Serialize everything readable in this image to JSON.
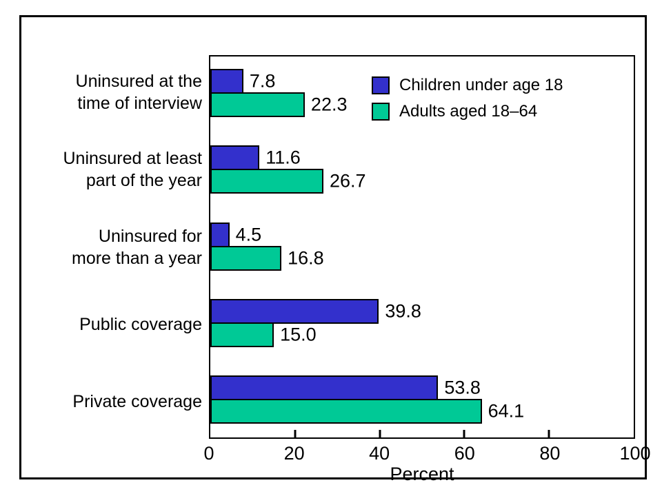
{
  "figure": {
    "background_color": "#FFFFFF",
    "frame_color": "#000000"
  },
  "chart_data": {
    "type": "bar",
    "orientation": "horizontal",
    "title": "",
    "xlabel": "Percent",
    "xlim": [
      0,
      100
    ],
    "xticks": [
      0,
      20,
      40,
      60,
      80,
      100
    ],
    "grid": false,
    "legend_position": "top-right-inside",
    "categories": [
      "Uninsured at the time of interview",
      "Uninsured at least part of the year",
      "Uninsured for more than a year",
      "Public coverage",
      "Private coverage"
    ],
    "category_display_lines": [
      [
        "Uninsured at the",
        "time of interview"
      ],
      [
        "Uninsured at least",
        "part of the year"
      ],
      [
        "Uninsured for",
        "more than a year"
      ],
      [
        "Public coverage"
      ],
      [
        "Private coverage"
      ]
    ],
    "series": [
      {
        "name": "Children under age 18",
        "color": "#3330CC",
        "values": [
          7.8,
          11.6,
          4.5,
          39.8,
          53.8
        ],
        "value_labels": [
          "7.8",
          "11.6",
          "4.5",
          "39.8",
          "53.8"
        ]
      },
      {
        "name": "Adults aged 18–64",
        "color": "#00C996",
        "values": [
          22.3,
          26.7,
          16.8,
          15.0,
          64.1
        ],
        "value_labels": [
          "22.3",
          "26.7",
          "16.8",
          "15.0",
          "64.1"
        ]
      }
    ]
  }
}
